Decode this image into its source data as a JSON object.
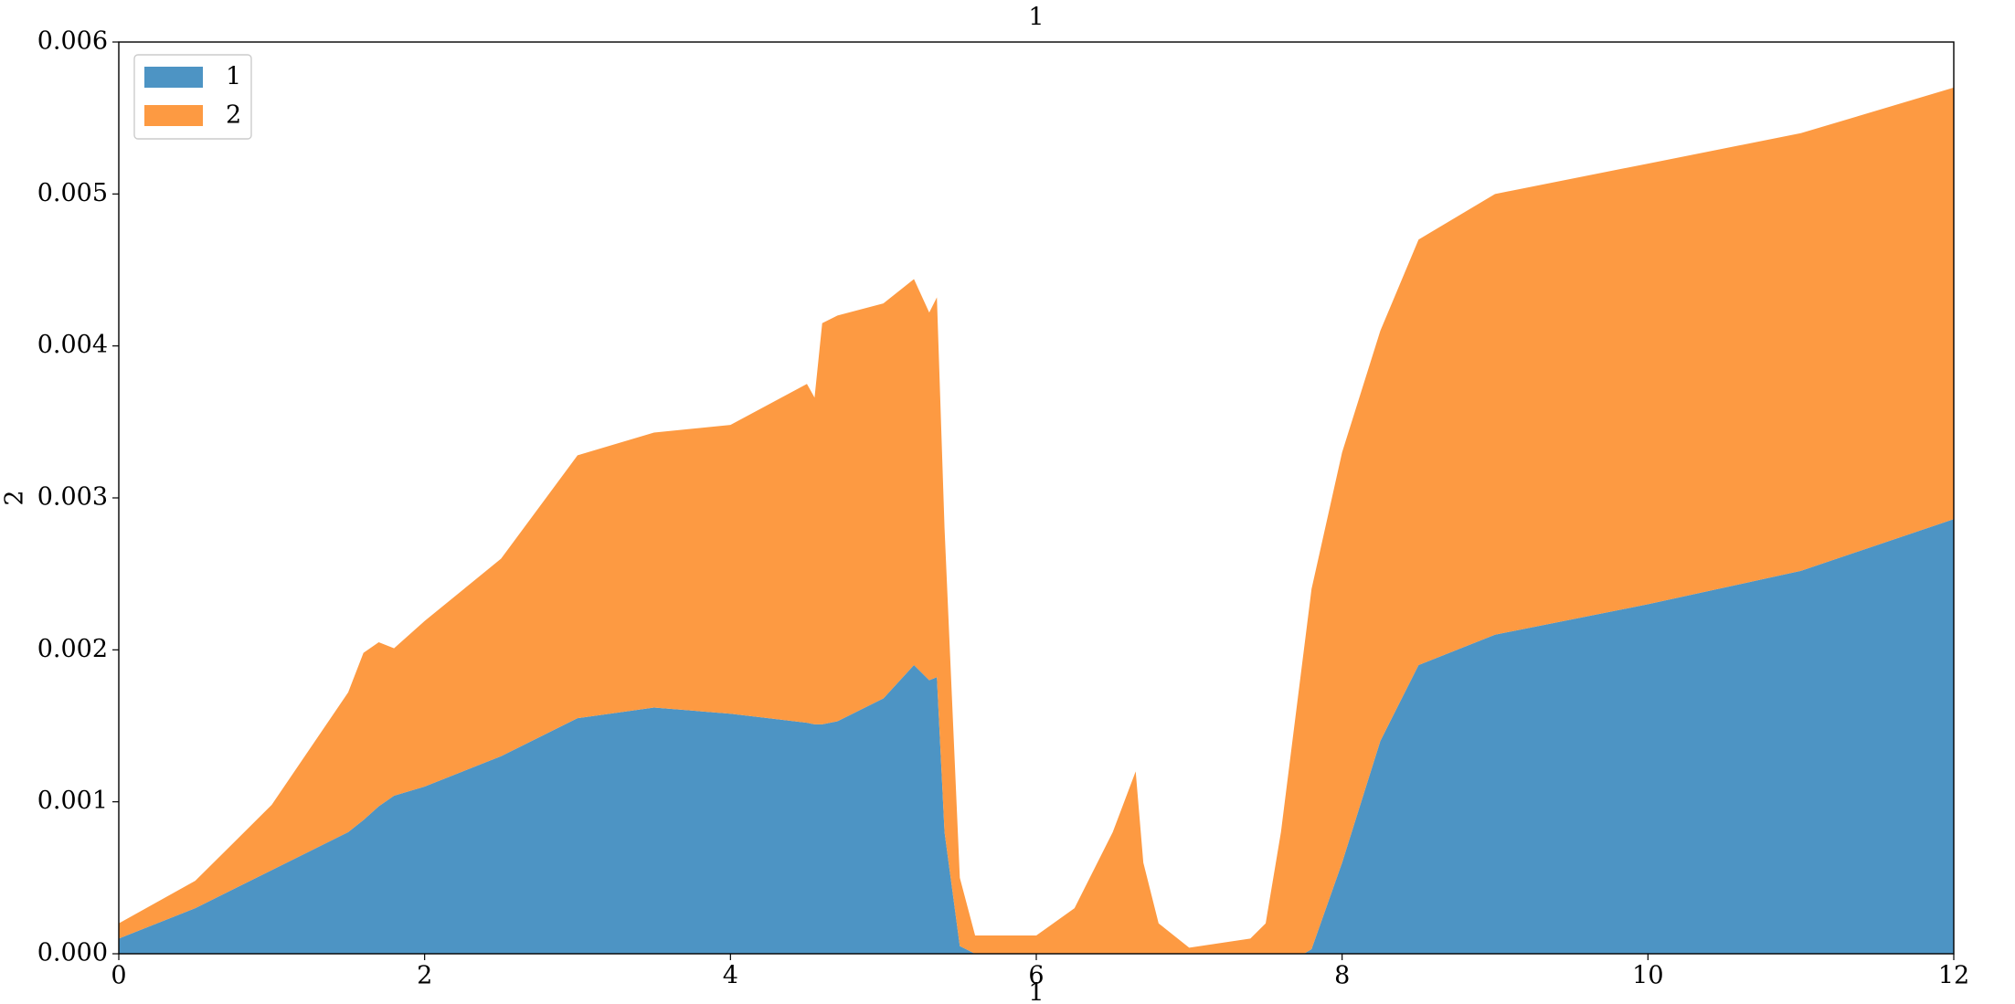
{
  "chart_data": {
    "type": "stacked_area",
    "title": "1",
    "x_label": "1",
    "y_label": "2",
    "x": [
      0,
      0.5,
      1,
      1.5,
      1.6,
      1.7,
      1.8,
      2,
      2.5,
      3,
      3.5,
      4,
      4.5,
      4.55,
      4.6,
      4.7,
      5,
      5.2,
      5.3,
      5.35,
      5.4,
      5.5,
      5.6,
      6,
      6.25,
      6.5,
      6.65,
      6.7,
      6.8,
      7,
      7.4,
      7.5,
      7.6,
      7.75,
      7.8,
      8,
      8.25,
      8.5,
      9,
      10,
      11,
      12
    ],
    "series": [
      {
        "name": "1",
        "color": "#4d94c4",
        "values": [
          0.0001,
          0.0003,
          0.00055,
          0.0008,
          0.00088,
          0.00097,
          0.00104,
          0.0011,
          0.0013,
          0.00155,
          0.00162,
          0.00158,
          0.00152,
          0.00151,
          0.00151,
          0.00153,
          0.00168,
          0.0019,
          0.0018,
          0.00182,
          0.0008,
          5e-05,
          0,
          0,
          0,
          0,
          0,
          0,
          0,
          0,
          0,
          0,
          0,
          0,
          3e-05,
          0.0006,
          0.0014,
          0.0019,
          0.0021,
          0.0023,
          0.00252,
          0.00286
        ]
      },
      {
        "name": "2",
        "color": "#fd9a42",
        "values": [
          0.0001,
          0.00018,
          0.00043,
          0.00092,
          0.0011,
          0.00108,
          0.00097,
          0.00109,
          0.0013,
          0.00173,
          0.00181,
          0.0019,
          0.00223,
          0.00215,
          0.00264,
          0.00267,
          0.0026,
          0.00254,
          0.00242,
          0.0025,
          0.002,
          0.00045,
          0.00012,
          0.00012,
          0.0003,
          0.0008,
          0.0012,
          0.0006,
          0.0002,
          4e-05,
          0.0001,
          0.0002,
          0.0008,
          0.002,
          0.00237,
          0.0027,
          0.0027,
          0.0028,
          0.0029,
          0.0029,
          0.00288,
          0.00284
        ]
      }
    ],
    "xlim": [
      0,
      12
    ],
    "xticks": [
      0,
      2,
      4,
      6,
      8,
      10,
      12
    ],
    "ylim": [
      0,
      0.006
    ],
    "yticks": [
      {
        "value": 0,
        "label": "0.000"
      },
      0.001,
      0.002,
      0.003,
      0.004,
      0.005,
      0.006
    ],
    "legend": "upper left",
    "grid": false
  }
}
